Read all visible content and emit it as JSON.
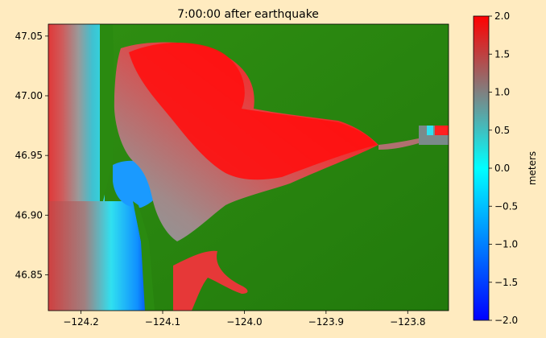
{
  "chart_data": {
    "type": "heatmap",
    "title": "7:00:00 after earthquake",
    "xlabel": "",
    "ylabel": "",
    "xlim": [
      -124.24,
      -123.75
    ],
    "ylim": [
      46.82,
      47.06
    ],
    "x_ticks": [
      -124.2,
      -124.1,
      -124.0,
      -123.9,
      -123.8
    ],
    "x_tick_labels": [
      "−124.2",
      "−124.1",
      "−124.0",
      "−123.9",
      "−123.8"
    ],
    "y_ticks": [
      46.85,
      46.9,
      46.95,
      47.0,
      47.05
    ],
    "y_tick_labels": [
      "46.85",
      "46.90",
      "46.95",
      "47.00",
      "47.05"
    ],
    "colorbar": {
      "label": "meters",
      "range": [
        -2.0,
        2.0
      ],
      "ticks": [
        -2.0,
        -1.5,
        -1.0,
        -0.5,
        0.0,
        0.5,
        1.0,
        1.5,
        2.0
      ],
      "tick_labels": [
        "−2.0",
        "−1.5",
        "−1.0",
        "−0.5",
        "0.0",
        "0.5",
        "1.0",
        "1.5",
        "2.0"
      ],
      "colors": [
        "#0000ff",
        "#00ffff",
        "#808080",
        "#ff0000"
      ]
    },
    "land_color": "#2a8a10",
    "grid": false
  }
}
